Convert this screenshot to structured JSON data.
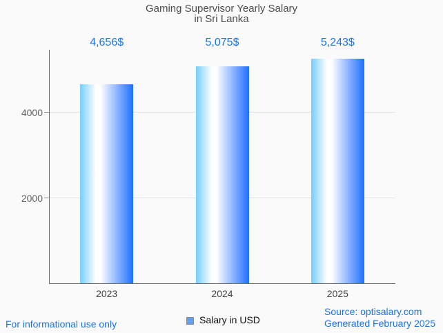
{
  "title": {
    "line1": "Gaming Supervisor Yearly Salary",
    "line2": "in Sri Lanka"
  },
  "chart_data": {
    "type": "bar",
    "title": "Gaming Supervisor Yearly Salary in Sri Lanka",
    "categories": [
      "2023",
      "2024",
      "2025"
    ],
    "values": [
      4656,
      5075,
      5243
    ],
    "value_labels": [
      "4,656$",
      "5,075$",
      "5,243$"
    ],
    "series": [
      {
        "name": "Salary in USD",
        "values": [
          4656,
          5075,
          5243
        ]
      }
    ],
    "xlabel": "",
    "ylabel": "",
    "yticks": [
      2000,
      4000
    ],
    "ytick_labels": [
      "2000",
      "4000"
    ],
    "ylim": [
      0,
      5460
    ],
    "grid": "horizontal-at-yticks-only",
    "legend_position": "bottom-center"
  },
  "legend": {
    "label": "Salary in USD"
  },
  "footer": {
    "disclaimer": "For informational use only",
    "source": "Source: optisalary.com",
    "generated": "Generated February 2025"
  },
  "colors": {
    "accent_blue": "#1a73e8",
    "title_gray": "#4d4d4d",
    "axis_gray": "#6e6e6e",
    "gridline_gray": "#e3e3e3",
    "bar_gradient_left": "#76cef9",
    "bar_gradient_white": "#ffffff",
    "bar_gradient_right": "#1e6eff",
    "legend_swatch_fill": "#62a0f0",
    "background": "#fafafa"
  }
}
